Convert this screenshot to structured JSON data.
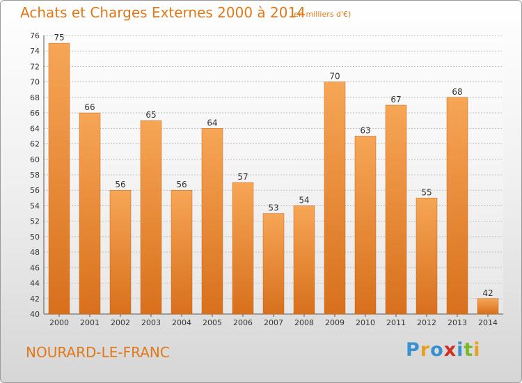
{
  "header": {
    "title": "Achats et Charges Externes 2000 à 2014",
    "subtitle": "(en milliers d'€)"
  },
  "footer": {
    "commune": "NOURARD-LE-FRANC",
    "logo_text": "Proxiti",
    "logo_colors": [
      "#3a8fd0",
      "#e8a020",
      "#3a8fd0",
      "#d03020",
      "#3a8fd0",
      "#79b829",
      "#e8a020"
    ]
  },
  "colors": {
    "bar_light": "#f6a656",
    "bar_dark": "#d8701c",
    "text_accent": "#e07818",
    "grid": "#bcbcbc"
  },
  "chart_data": {
    "type": "bar",
    "title": "Achats et Charges Externes 2000 à 2014",
    "subtitle": "(en milliers d'€)",
    "xlabel": "",
    "ylabel": "",
    "categories": [
      "2000",
      "2001",
      "2002",
      "2003",
      "2004",
      "2005",
      "2006",
      "2007",
      "2008",
      "2009",
      "2010",
      "2011",
      "2012",
      "2013",
      "2014"
    ],
    "values": [
      75,
      66,
      56,
      65,
      56,
      64,
      57,
      53,
      54,
      70,
      63,
      67,
      55,
      68,
      42
    ],
    "ylim": [
      40,
      76
    ],
    "yticks": [
      40,
      42,
      44,
      46,
      48,
      50,
      52,
      54,
      56,
      58,
      60,
      62,
      64,
      66,
      68,
      70,
      72,
      74,
      76
    ],
    "grid": true,
    "legend": "none"
  }
}
